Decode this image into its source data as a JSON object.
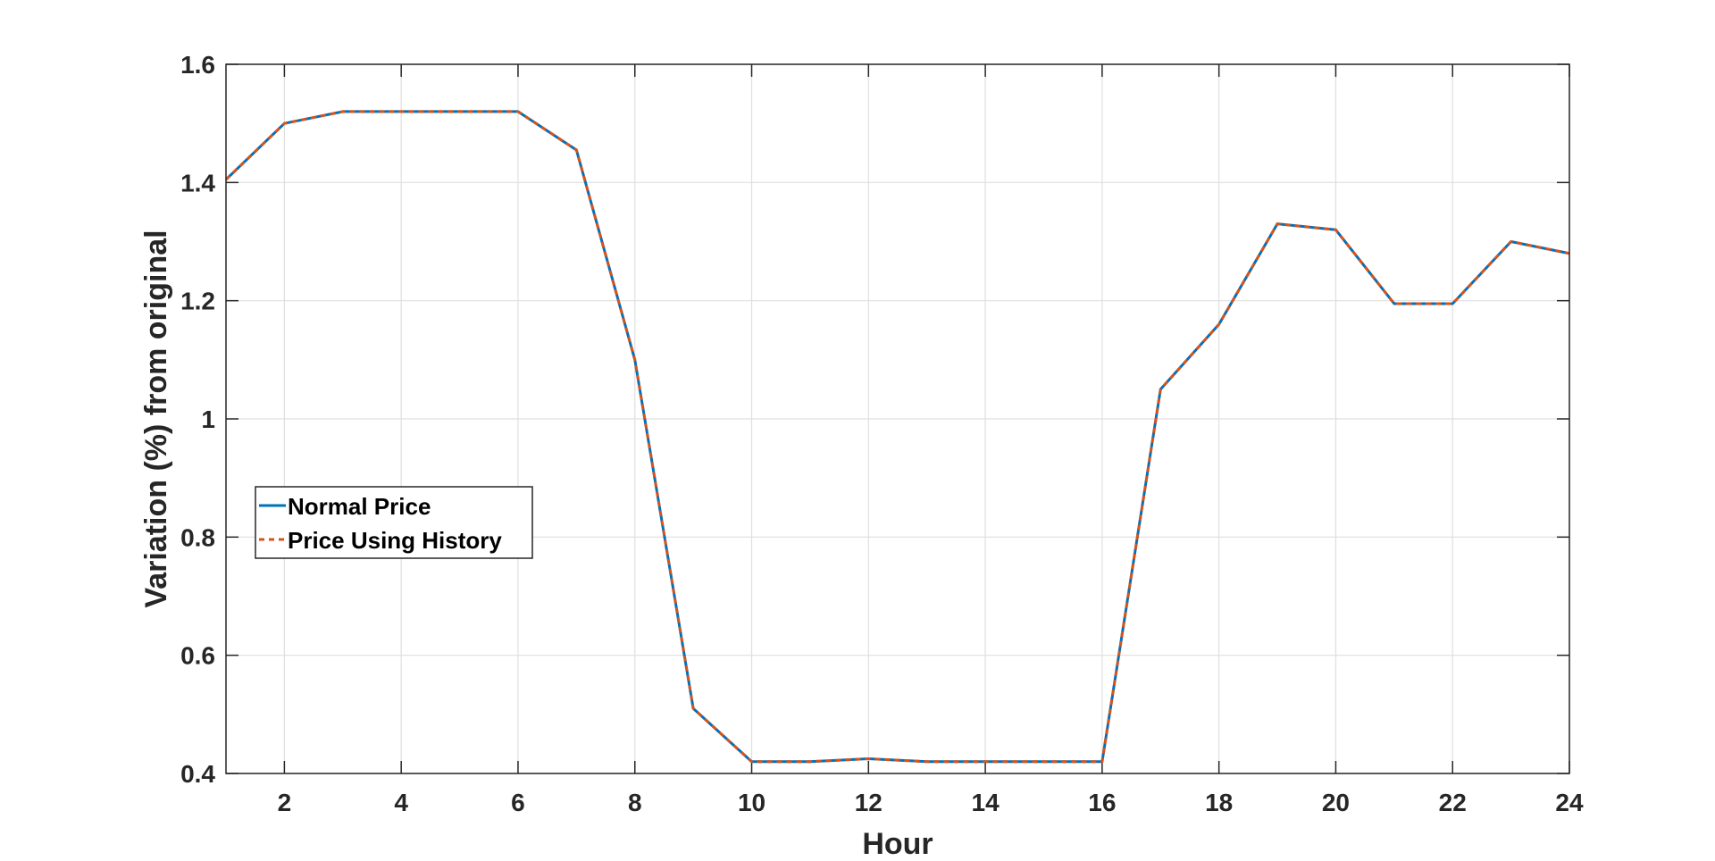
{
  "chart_data": {
    "type": "line",
    "title": "",
    "xlabel": "Hour",
    "ylabel": "Variation (%) from original",
    "xlim": [
      1,
      24
    ],
    "ylim": [
      0.4,
      1.6
    ],
    "xticks": [
      2,
      4,
      6,
      8,
      10,
      12,
      14,
      16,
      18,
      20,
      22,
      24
    ],
    "yticks": [
      0.4,
      0.6,
      0.8,
      1,
      1.2,
      1.4,
      1.6
    ],
    "xtick_labels": [
      "2",
      "4",
      "6",
      "8",
      "10",
      "12",
      "14",
      "16",
      "18",
      "20",
      "22",
      "24"
    ],
    "ytick_labels": [
      "0.4",
      "0.6",
      "0.8",
      "1",
      "1.2",
      "1.4",
      "1.6"
    ],
    "grid": true,
    "box": true,
    "legend_position": "middle-left",
    "x": [
      1,
      2,
      3,
      4,
      5,
      6,
      7,
      8,
      9,
      10,
      11,
      12,
      13,
      14,
      15,
      16,
      17,
      18,
      19,
      20,
      21,
      22,
      23,
      24
    ],
    "series": [
      {
        "name": "Normal Price",
        "color": "#0072BD",
        "style": "solid",
        "values": [
          1.405,
          1.5,
          1.52,
          1.52,
          1.52,
          1.52,
          1.455,
          1.1,
          0.51,
          0.42,
          0.42,
          0.425,
          0.42,
          0.42,
          0.42,
          0.42,
          1.05,
          1.16,
          1.33,
          1.32,
          1.195,
          1.195,
          1.3,
          1.28
        ]
      },
      {
        "name": "Price Using History",
        "color": "#D95319",
        "style": "dashed",
        "values": [
          1.405,
          1.5,
          1.52,
          1.52,
          1.52,
          1.52,
          1.455,
          1.1,
          0.51,
          0.42,
          0.42,
          0.425,
          0.42,
          0.42,
          0.42,
          0.42,
          1.05,
          1.16,
          1.33,
          1.32,
          1.195,
          1.195,
          1.3,
          1.28
        ]
      }
    ]
  }
}
